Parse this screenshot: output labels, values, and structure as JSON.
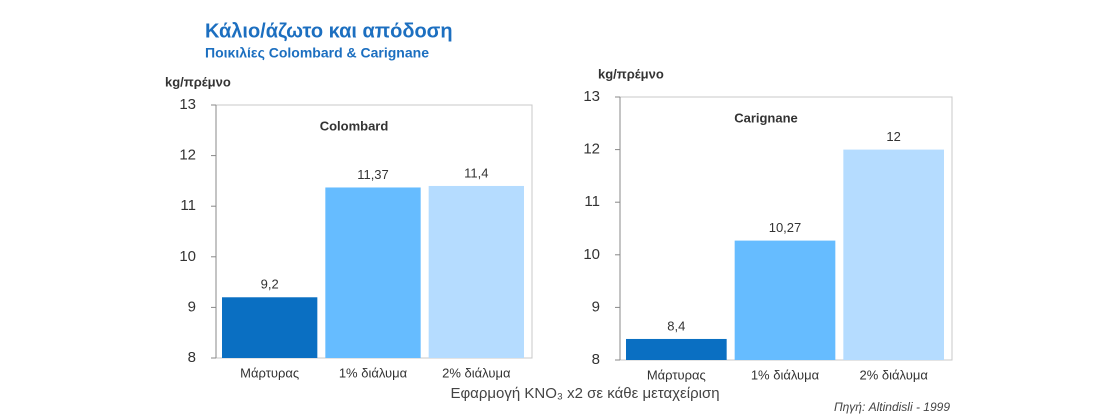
{
  "title": "Κάλιο/άζωτο και απόδοση",
  "subtitle": "Ποικιλίες Colombard & Carignane",
  "xlabel": "Εφαρμογή KNO₃ x2 σε κάθε μεταχείριση",
  "source": "Πηγή: Altindisli - 1999",
  "chart_data": [
    {
      "type": "bar",
      "label": "Colombard",
      "ylabel": "kg/πρέμνο",
      "categories": [
        "Μάρτυρας",
        "1% διάλυμα",
        "2% διάλυμα"
      ],
      "values": [
        9.2,
        11.37,
        11.4
      ],
      "value_labels": [
        "9,2",
        "11,37",
        "11,4"
      ],
      "colors": [
        "#0a6fc2",
        "#66bcff",
        "#b5dcff"
      ],
      "ylim": [
        8,
        13
      ],
      "yticks": [
        8,
        9,
        10,
        11,
        12,
        13
      ],
      "grid": false
    },
    {
      "type": "bar",
      "label": "Carignane",
      "ylabel": "kg/πρέμνο",
      "categories": [
        "Μάρτυρας",
        "1% διάλυμα",
        "2% διάλυμα"
      ],
      "values": [
        8.4,
        10.27,
        12
      ],
      "value_labels": [
        "8,4",
        "10,27",
        "12"
      ],
      "colors": [
        "#0a6fc2",
        "#66bcff",
        "#b5dcff"
      ],
      "ylim": [
        8,
        13
      ],
      "yticks": [
        8,
        9,
        10,
        11,
        12,
        13
      ],
      "grid": false
    }
  ]
}
